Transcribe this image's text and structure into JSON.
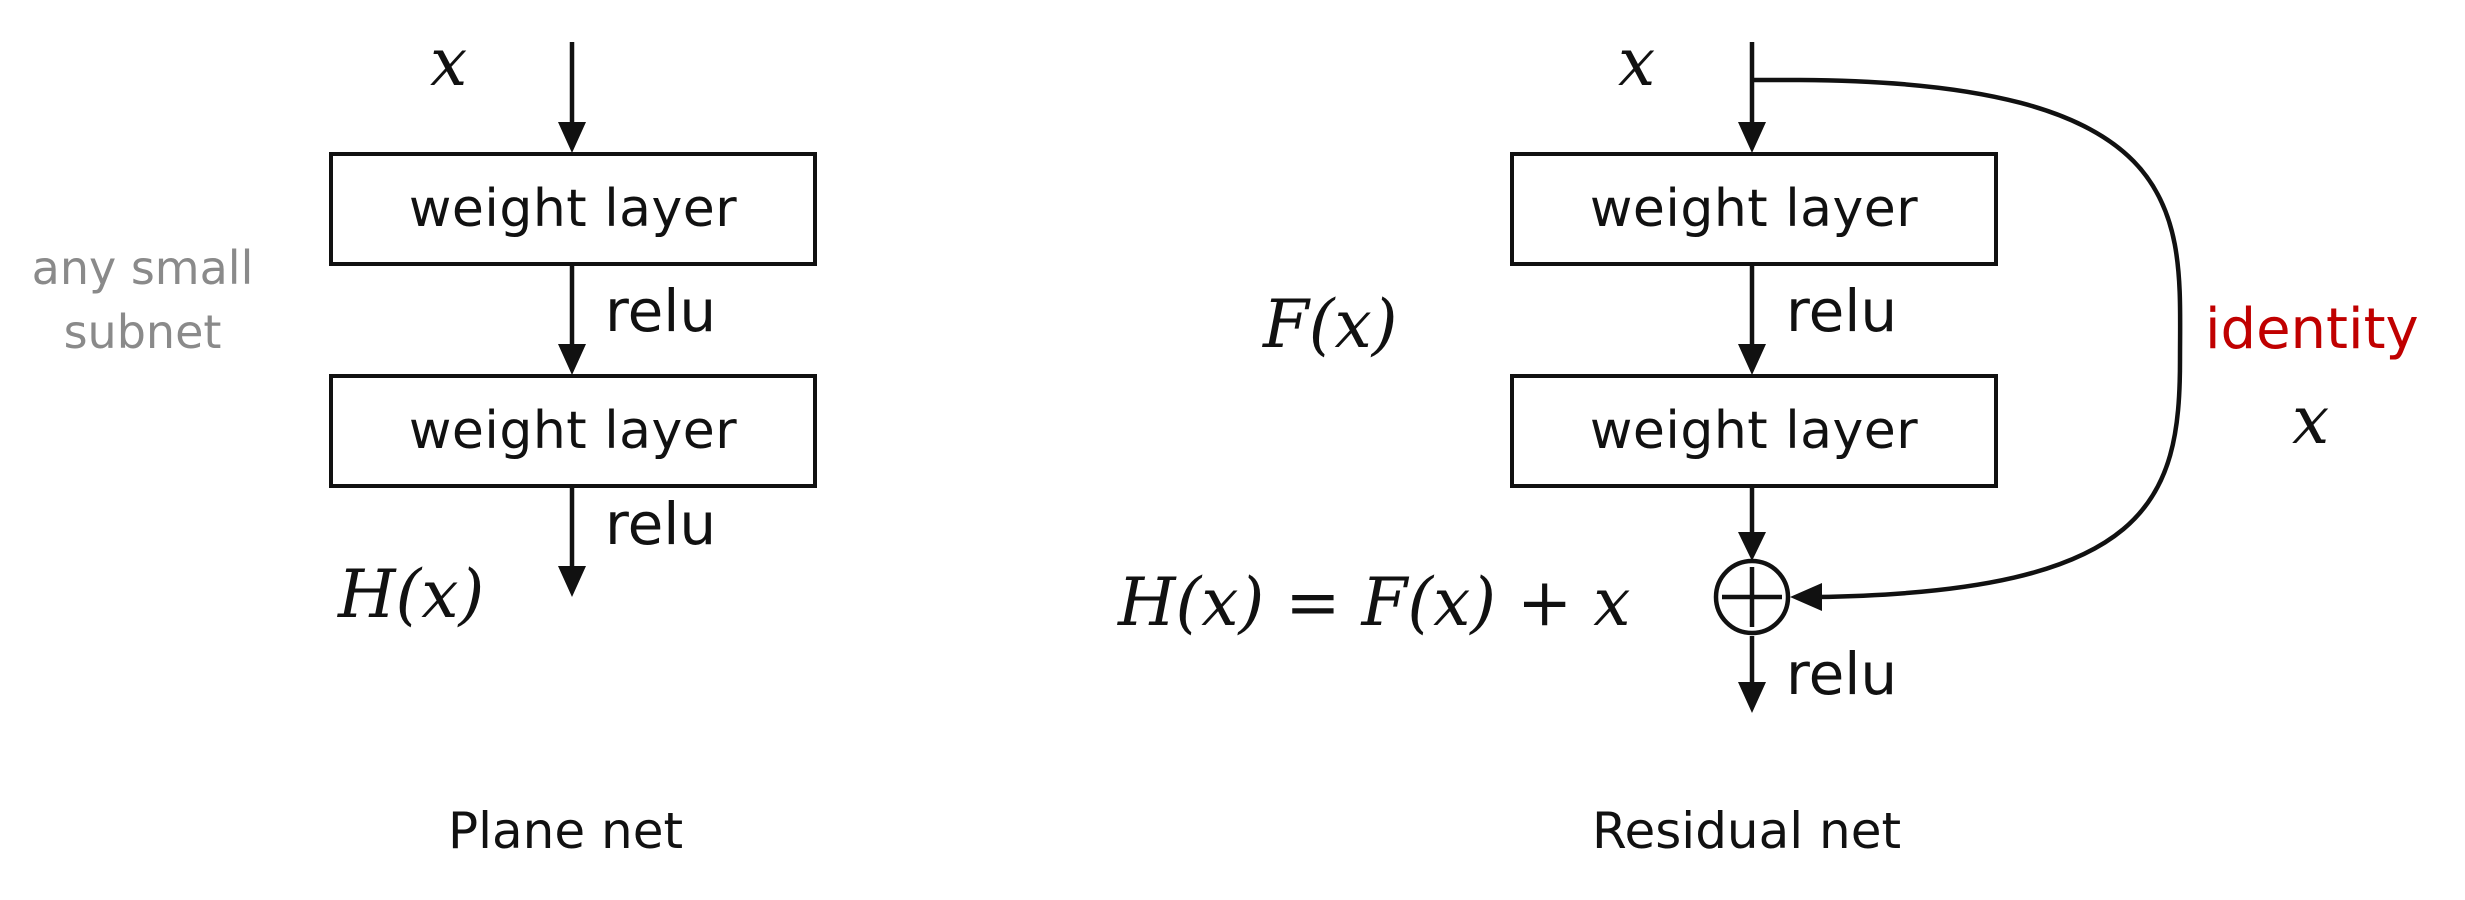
{
  "plane": {
    "input": "x",
    "layer1": "weight layer",
    "relu1": "relu",
    "layer2": "weight layer",
    "relu2": "relu",
    "output": "H(x)",
    "side_note": "any small subnet",
    "caption": "Plane net"
  },
  "residual": {
    "input": "x",
    "layer1": "weight layer",
    "relu1": "relu",
    "layer2": "weight layer",
    "fx": "F(x)",
    "identity_label": "identity",
    "identity_x": "x",
    "equation": "H(x) = F(x) + x",
    "relu_out": "relu",
    "caption": "Residual net"
  },
  "colors": {
    "stroke": "#111111",
    "side_note": "#8a8a8a",
    "identity": "#c00000"
  },
  "icons": {
    "sum_node": "circle-plus-icon",
    "arrow": "arrow-down-icon"
  }
}
